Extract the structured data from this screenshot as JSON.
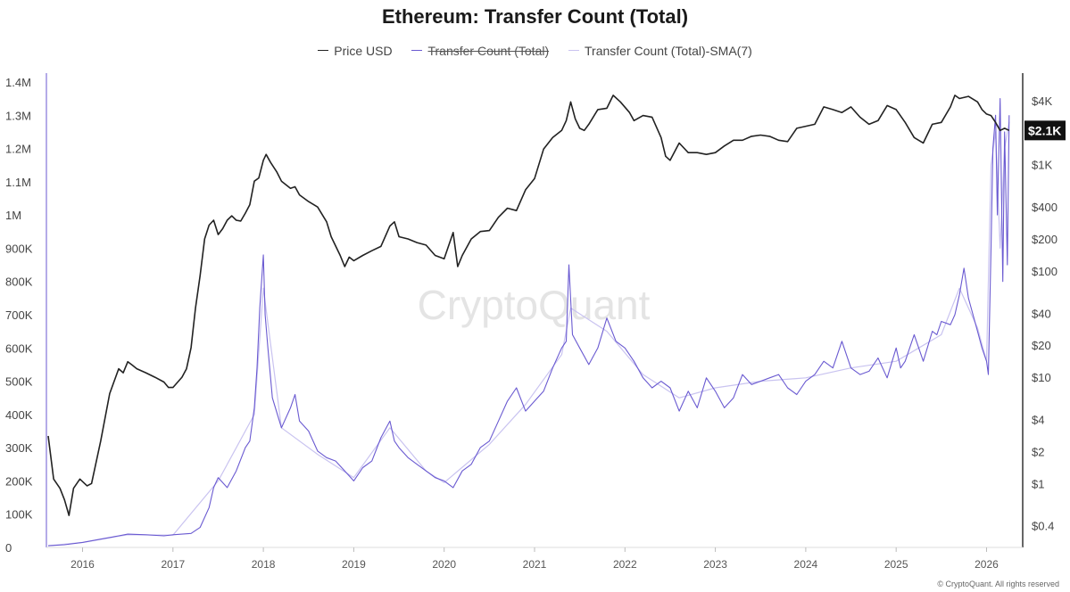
{
  "chart_data": {
    "type": "line",
    "title": "Ethereum: Transfer Count (Total)",
    "legend": [
      {
        "label": "Price USD",
        "color": "#222222",
        "struck": false
      },
      {
        "label": "Transfer Count (Total)",
        "color": "#6a5ad1",
        "struck": true
      },
      {
        "label": "Transfer Count (Total)-SMA(7)",
        "color": "#c9c3f0",
        "struck": false
      }
    ],
    "x_ticks": [
      "2016",
      "2017",
      "2018",
      "2019",
      "2020",
      "2021",
      "2022",
      "2023",
      "2024",
      "2025",
      "2026"
    ],
    "xlim": [
      2015.6,
      2026.4
    ],
    "left_axis": {
      "range": [
        0,
        1400000
      ],
      "ticks": [
        0,
        100000,
        200000,
        300000,
        400000,
        500000,
        600000,
        700000,
        800000,
        900000,
        1000000,
        1100000,
        1200000,
        1300000,
        1400000
      ],
      "labels": [
        "0",
        "100K",
        "200K",
        "300K",
        "400K",
        "500K",
        "600K",
        "700K",
        "800K",
        "900K",
        "1M",
        "1.1M",
        "1.2M",
        "1.3M",
        "1.4M"
      ]
    },
    "right_axis": {
      "scale": "log",
      "range": [
        0.25,
        6000
      ],
      "ticks": [
        0.4,
        1,
        2,
        4,
        10,
        20,
        40,
        100,
        200,
        400,
        1000,
        4000
      ],
      "labels": [
        "$0.4",
        "$1",
        "$2",
        "$4",
        "$10",
        "$20",
        "$40",
        "$100",
        "$200",
        "$400",
        "$1K",
        "$4K"
      ]
    },
    "current_price": {
      "value": 2100,
      "label": "$2.1K"
    },
    "series": [
      {
        "name": "Price USD",
        "axis": "right",
        "color": "#222222",
        "x": [
          2015.62,
          2015.68,
          2015.75,
          2015.8,
          2015.85,
          2015.9,
          2015.97,
          2016.05,
          2016.1,
          2016.2,
          2016.3,
          2016.4,
          2016.45,
          2016.5,
          2016.55,
          2016.6,
          2016.7,
          2016.8,
          2016.9,
          2016.95,
          2017.0,
          2017.1,
          2017.15,
          2017.2,
          2017.25,
          2017.3,
          2017.35,
          2017.4,
          2017.45,
          2017.5,
          2017.55,
          2017.6,
          2017.65,
          2017.7,
          2017.75,
          2017.8,
          2017.85,
          2017.9,
          2017.95,
          2018.0,
          2018.03,
          2018.08,
          2018.15,
          2018.2,
          2018.3,
          2018.35,
          2018.4,
          2018.5,
          2018.6,
          2018.7,
          2018.75,
          2018.85,
          2018.9,
          2018.95,
          2019.0,
          2019.1,
          2019.2,
          2019.3,
          2019.4,
          2019.45,
          2019.5,
          2019.6,
          2019.7,
          2019.8,
          2019.9,
          2020.0,
          2020.1,
          2020.15,
          2020.2,
          2020.3,
          2020.4,
          2020.5,
          2020.6,
          2020.7,
          2020.8,
          2020.9,
          2021.0,
          2021.1,
          2021.2,
          2021.3,
          2021.35,
          2021.4,
          2021.45,
          2021.5,
          2021.55,
          2021.6,
          2021.7,
          2021.8,
          2021.87,
          2021.95,
          2022.05,
          2022.1,
          2022.2,
          2022.3,
          2022.4,
          2022.45,
          2022.5,
          2022.6,
          2022.7,
          2022.8,
          2022.9,
          2023.0,
          2023.1,
          2023.2,
          2023.3,
          2023.4,
          2023.5,
          2023.6,
          2023.7,
          2023.8,
          2023.9,
          2024.0,
          2024.1,
          2024.2,
          2024.3,
          2024.4,
          2024.5,
          2024.6,
          2024.7,
          2024.8,
          2024.9,
          2025.0,
          2025.1,
          2025.2,
          2025.3,
          2025.4,
          2025.5,
          2025.6,
          2025.65,
          2025.7,
          2025.8,
          2025.9,
          2025.95,
          2026.0,
          2026.05,
          2026.1,
          2026.15,
          2026.2,
          2026.25
        ],
        "y": [
          2.8,
          1.1,
          0.9,
          0.7,
          0.5,
          0.9,
          1.1,
          0.95,
          1.0,
          2.5,
          7,
          12,
          11,
          14,
          13,
          12,
          11,
          10,
          9,
          8,
          8,
          10,
          12,
          19,
          45,
          90,
          200,
          270,
          300,
          220,
          250,
          300,
          330,
          300,
          295,
          350,
          420,
          700,
          750,
          1100,
          1250,
          1050,
          850,
          700,
          600,
          620,
          520,
          450,
          400,
          290,
          210,
          140,
          110,
          135,
          125,
          140,
          155,
          170,
          265,
          290,
          210,
          200,
          185,
          175,
          140,
          130,
          230,
          110,
          140,
          200,
          235,
          240,
          320,
          390,
          370,
          580,
          740,
          1400,
          1800,
          2100,
          2600,
          3900,
          2700,
          2200,
          2100,
          2400,
          3300,
          3400,
          4500,
          3900,
          3100,
          2600,
          2900,
          2800,
          1800,
          1200,
          1100,
          1600,
          1300,
          1300,
          1250,
          1300,
          1500,
          1700,
          1700,
          1850,
          1900,
          1850,
          1700,
          1650,
          2200,
          2300,
          2400,
          3500,
          3300,
          3100,
          3500,
          2800,
          2400,
          2600,
          3600,
          3300,
          2500,
          1800,
          1600,
          2400,
          2500,
          3500,
          4500,
          4200,
          4400,
          3900,
          3300,
          3000,
          2900,
          2500,
          2100,
          2200,
          2100
        ],
        "legend_label": "Price USD"
      },
      {
        "name": "Transfer Count (Total)",
        "axis": "left",
        "color": "#6a5ad1",
        "x": [
          2015.62,
          2015.8,
          2016.0,
          2016.2,
          2016.4,
          2016.5,
          2016.7,
          2016.9,
          2017.0,
          2017.2,
          2017.3,
          2017.4,
          2017.45,
          2017.5,
          2017.6,
          2017.7,
          2017.8,
          2017.85,
          2017.9,
          2017.93,
          2017.96,
          2018.0,
          2018.02,
          2018.05,
          2018.1,
          2018.2,
          2018.3,
          2018.35,
          2018.4,
          2018.5,
          2018.6,
          2018.7,
          2018.8,
          2018.9,
          2019.0,
          2019.1,
          2019.2,
          2019.3,
          2019.4,
          2019.45,
          2019.5,
          2019.6,
          2019.7,
          2019.8,
          2019.9,
          2020.0,
          2020.1,
          2020.2,
          2020.3,
          2020.4,
          2020.5,
          2020.6,
          2020.7,
          2020.8,
          2020.9,
          2021.0,
          2021.1,
          2021.2,
          2021.3,
          2021.35,
          2021.38,
          2021.42,
          2021.5,
          2021.6,
          2021.7,
          2021.8,
          2021.9,
          2022.0,
          2022.1,
          2022.2,
          2022.3,
          2022.4,
          2022.5,
          2022.6,
          2022.7,
          2022.8,
          2022.9,
          2023.0,
          2023.1,
          2023.2,
          2023.3,
          2023.4,
          2023.5,
          2023.6,
          2023.7,
          2023.8,
          2023.9,
          2024.0,
          2024.1,
          2024.2,
          2024.3,
          2024.4,
          2024.5,
          2024.6,
          2024.7,
          2024.8,
          2024.9,
          2025.0,
          2025.05,
          2025.1,
          2025.2,
          2025.3,
          2025.4,
          2025.45,
          2025.5,
          2025.6,
          2025.65,
          2025.7,
          2025.75,
          2025.8,
          2025.85,
          2025.9,
          2025.95,
          2026.0,
          2026.02,
          2026.05,
          2026.07,
          2026.1,
          2026.12,
          2026.15,
          2026.18,
          2026.2,
          2026.23,
          2026.25
        ],
        "y": [
          5000,
          8000,
          15000,
          25000,
          35000,
          40000,
          38000,
          35000,
          38000,
          42000,
          60000,
          120000,
          180000,
          210000,
          180000,
          230000,
          300000,
          320000,
          420000,
          540000,
          720000,
          880000,
          700000,
          600000,
          450000,
          360000,
          420000,
          460000,
          380000,
          350000,
          290000,
          270000,
          260000,
          230000,
          200000,
          240000,
          260000,
          330000,
          380000,
          320000,
          300000,
          270000,
          250000,
          230000,
          210000,
          200000,
          180000,
          230000,
          250000,
          300000,
          320000,
          380000,
          440000,
          480000,
          410000,
          440000,
          470000,
          540000,
          600000,
          620000,
          850000,
          640000,
          600000,
          550000,
          600000,
          690000,
          620000,
          600000,
          560000,
          510000,
          480000,
          500000,
          480000,
          410000,
          470000,
          420000,
          510000,
          470000,
          420000,
          450000,
          520000,
          490000,
          500000,
          510000,
          520000,
          480000,
          460000,
          500000,
          520000,
          560000,
          540000,
          620000,
          540000,
          520000,
          530000,
          570000,
          510000,
          600000,
          540000,
          560000,
          640000,
          560000,
          650000,
          640000,
          680000,
          670000,
          700000,
          760000,
          840000,
          750000,
          700000,
          650000,
          600000,
          560000,
          520000,
          900000,
          1200000,
          1300000,
          1000000,
          1350000,
          800000,
          1250000,
          850000,
          1300000
        ],
        "legend_label": "Transfer Count (Total)"
      },
      {
        "name": "Transfer Count (Total)-SMA(7)",
        "axis": "left",
        "color": "#c9c3f0",
        "x": [
          2015.62,
          2016.0,
          2016.5,
          2017.0,
          2017.5,
          2017.9,
          2018.0,
          2018.2,
          2018.6,
          2019.0,
          2019.4,
          2019.8,
          2020.0,
          2020.5,
          2020.9,
          2021.3,
          2021.4,
          2021.8,
          2022.2,
          2022.6,
          2023.0,
          2023.5,
          2024.0,
          2024.5,
          2025.0,
          2025.5,
          2025.7,
          2025.9,
          2026.0,
          2026.05,
          2026.1,
          2026.15,
          2026.2,
          2026.25
        ],
        "y": [
          5000,
          15000,
          38000,
          37000,
          200000,
          400000,
          780000,
          360000,
          280000,
          210000,
          360000,
          230000,
          195000,
          310000,
          430000,
          580000,
          720000,
          650000,
          520000,
          450000,
          480000,
          500000,
          510000,
          540000,
          560000,
          640000,
          780000,
          660000,
          560000,
          1150000,
          1250000,
          900000,
          1200000,
          1280000
        ],
        "legend_label": "Transfer Count (Total)-SMA(7)"
      }
    ],
    "watermark": "CryptoQuant",
    "footer": "© CryptoQuant. All rights reserved"
  }
}
